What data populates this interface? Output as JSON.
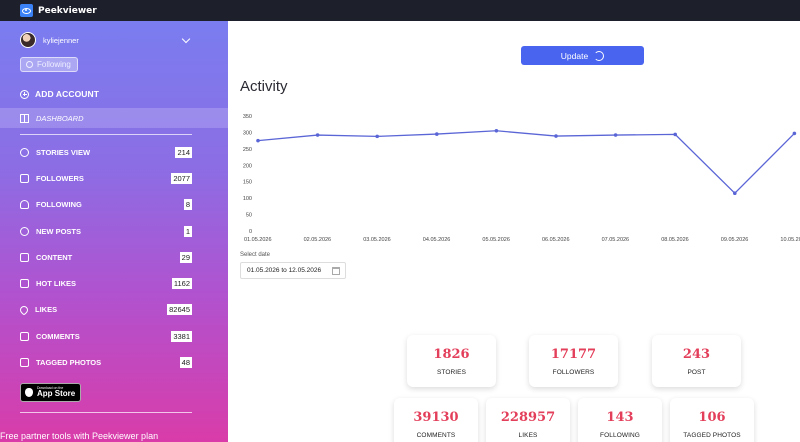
{
  "app": {
    "brand": "Peekviewer"
  },
  "sidebar": {
    "username": "kyliejenner",
    "following_label": "Following",
    "add_account": "ADD ACCOUNT",
    "dashboard": "DASHBOARD",
    "items": [
      {
        "label": "STORIES VIEW",
        "count": "214",
        "icon": "clock-icon"
      },
      {
        "label": "FOLLOWERS",
        "count": "2077",
        "icon": "followers-icon"
      },
      {
        "label": "FOLLOWING",
        "count": "8",
        "icon": "person-icon"
      },
      {
        "label": "NEW POSTS",
        "count": "1",
        "icon": "bulb-icon"
      },
      {
        "label": "CONTENT",
        "count": "29",
        "icon": "content-icon"
      },
      {
        "label": "HOT LIKES",
        "count": "1162",
        "icon": "thumbs-up-icon"
      },
      {
        "label": "LIKES",
        "count": "82645",
        "icon": "heart-icon"
      },
      {
        "label": "COMMENTS",
        "count": "3381",
        "icon": "comment-icon"
      },
      {
        "label": "TAGGED PHOTOS",
        "count": "48",
        "icon": "tag-icon"
      }
    ],
    "appstore_small": "Download on the",
    "appstore_big": "App Store",
    "promo": "Free partner tools with Peekviewer plan"
  },
  "main": {
    "update_label": "Update",
    "activity_title": "Activity",
    "select_date_label": "Select date",
    "date_range": "01.05.2026 to 12.05.2026",
    "stats": [
      {
        "value": "1826",
        "label": "STORIES"
      },
      {
        "value": "17177",
        "label": "FOLLOWERS"
      },
      {
        "value": "243",
        "label": "POST"
      },
      {
        "value": "39130",
        "label": "COMMENTS"
      },
      {
        "value": "228957",
        "label": "LIKES"
      },
      {
        "value": "143",
        "label": "FOLLOWING"
      },
      {
        "value": "106",
        "label": "TAGGED PHOTOS"
      }
    ]
  },
  "chart_data": {
    "type": "line",
    "ylim": [
      0,
      350
    ],
    "yticks": [
      "0",
      "50",
      "100",
      "150",
      "200",
      "250",
      "300",
      "350"
    ],
    "x": [
      "01.05.2026",
      "02.05.2026",
      "03.05.2026",
      "04.05.2026",
      "05.05.2026",
      "06.05.2026",
      "07.05.2026",
      "08.05.2026",
      "09.05.2026",
      "10.05.2026"
    ],
    "values": [
      275,
      292,
      288,
      295,
      305,
      289,
      292,
      294,
      115,
      297
    ],
    "color": "#5b66d6",
    "grid": false
  }
}
